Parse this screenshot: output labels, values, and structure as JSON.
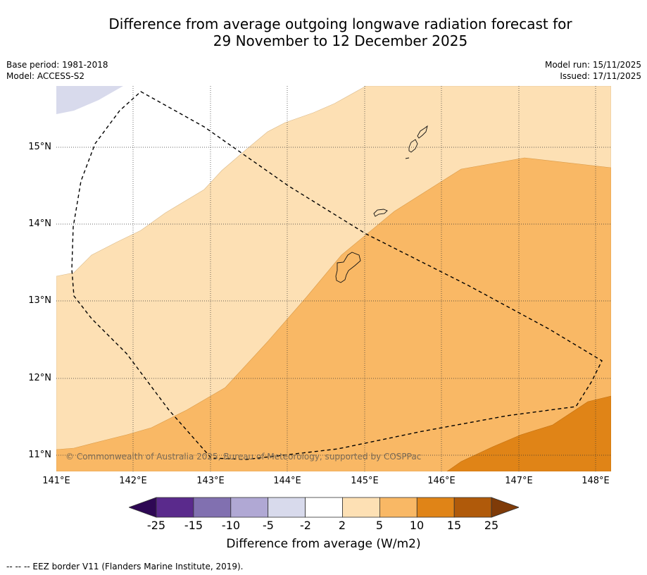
{
  "title": {
    "line1": "Difference from average outgoing longwave radiation forecast for",
    "line2": "29 November to 12 December 2025"
  },
  "meta": {
    "base_period": "Base period: 1981-2018",
    "model": "Model: ACCESS-S2",
    "model_run": "Model run: 15/11/2025",
    "issued": "Issued: 17/11/2025"
  },
  "map": {
    "lat_labels": [
      "15°N",
      "14°N",
      "13°N",
      "12°N",
      "11°N"
    ],
    "lon_labels": [
      "141°E",
      "142°E",
      "143°E",
      "144°E",
      "145°E",
      "146°E",
      "147°E",
      "148°E"
    ],
    "credit": "© Commonwealth of Australia 2025, Bureau of Meteorology, supported by COSPPac",
    "extent": {
      "lon_min": 141.0,
      "lon_max": 148.2,
      "lat_min": 10.8,
      "lat_max": 15.8
    }
  },
  "colorbar": {
    "ticks": [
      "-25",
      "-15",
      "-10",
      "-5",
      "-2",
      "2",
      "5",
      "10",
      "15",
      "25"
    ],
    "colors": [
      "#2e0854",
      "#5a2a8c",
      "#8170b0",
      "#b0a8d4",
      "#d8daec",
      "#ffffff",
      "#fde0b4",
      "#f9b865",
      "#e08417",
      "#b05a0a",
      "#7f3b08"
    ],
    "label": "Difference from average (W/m2)"
  },
  "footnote": "--  --  -- EEZ border V11 (Flanders Marine Institute, 2019)."
}
